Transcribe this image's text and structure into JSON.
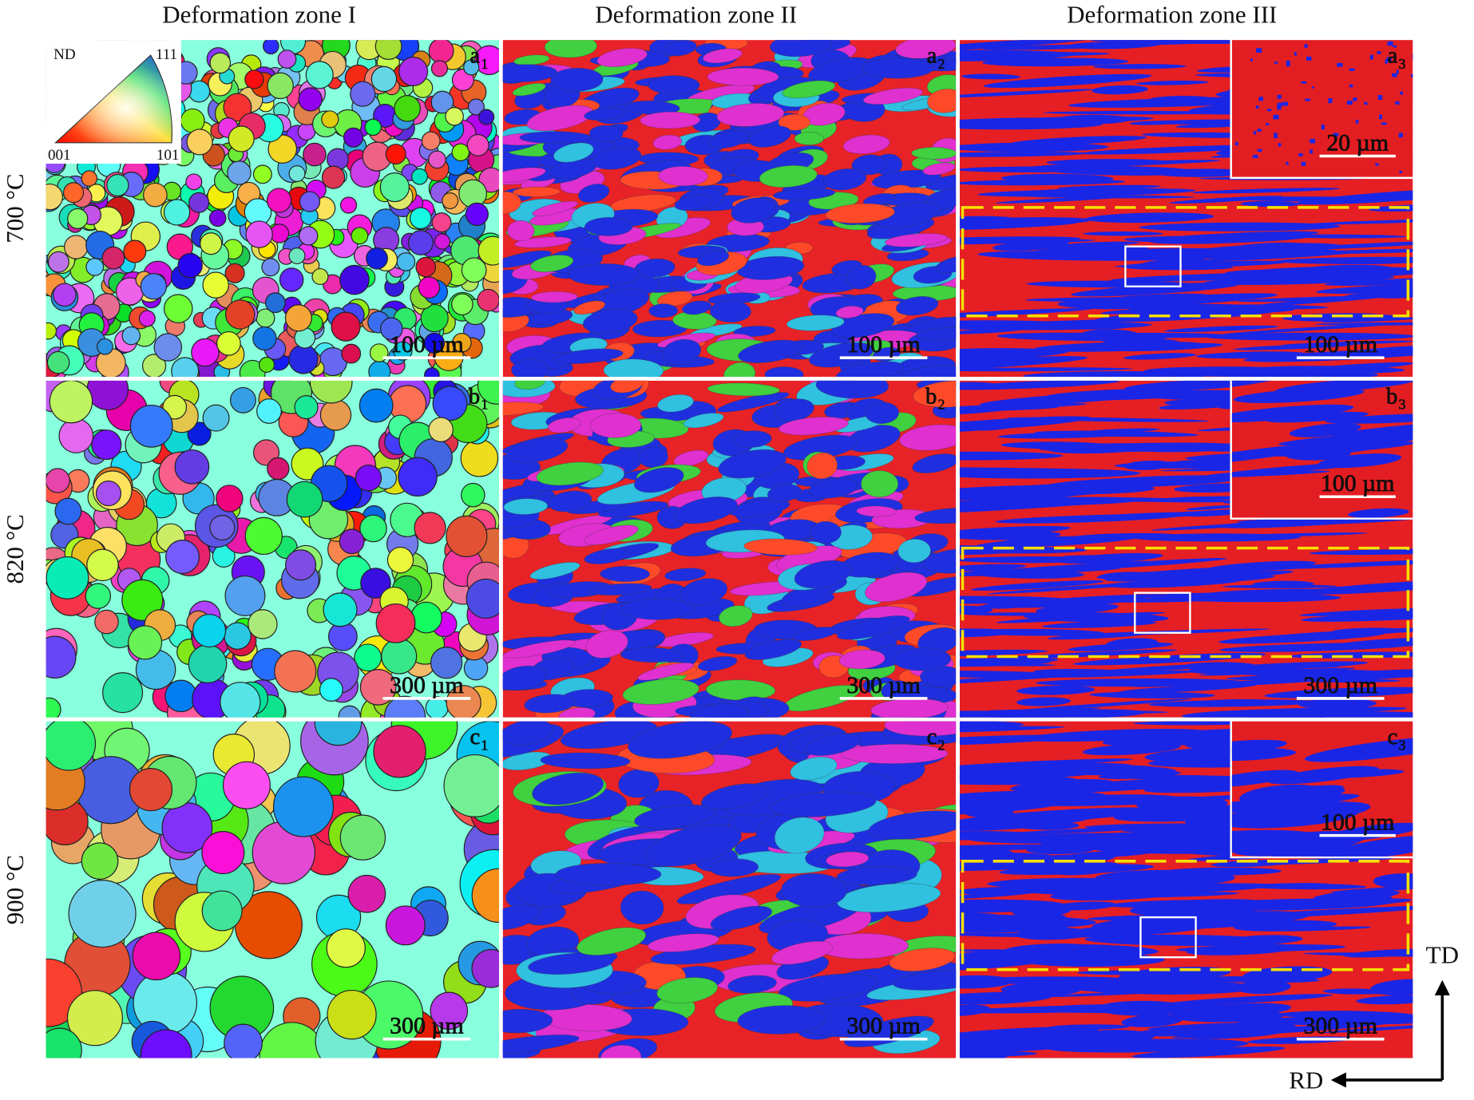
{
  "columns": [
    "Deformation zone I",
    "Deformation zone II",
    "Deformation zone III"
  ],
  "rows": [
    "700 °C",
    "820 °C",
    "900 °C"
  ],
  "panels": [
    [
      {
        "letter": "a",
        "sub": "1",
        "scale": "100 µm"
      },
      {
        "letter": "a",
        "sub": "2",
        "scale": "100 µm"
      },
      {
        "letter": "a",
        "sub": "3",
        "scale": "100 µm",
        "inset_scale": "20 µm"
      }
    ],
    [
      {
        "letter": "b",
        "sub": "1",
        "scale": "300 µm"
      },
      {
        "letter": "b",
        "sub": "2",
        "scale": "300 µm"
      },
      {
        "letter": "b",
        "sub": "3",
        "scale": "300 µm",
        "inset_scale": "100 µm"
      }
    ],
    [
      {
        "letter": "c",
        "sub": "1",
        "scale": "300 µm"
      },
      {
        "letter": "c",
        "sub": "2",
        "scale": "300 µm"
      },
      {
        "letter": "c",
        "sub": "3",
        "scale": "300 µm",
        "inset_scale": "100 µm"
      }
    ]
  ],
  "legend": {
    "title": "ND",
    "top": "111",
    "left": "001",
    "right": "101"
  },
  "axes": {
    "vertical": "TD",
    "horizontal": "RD"
  }
}
